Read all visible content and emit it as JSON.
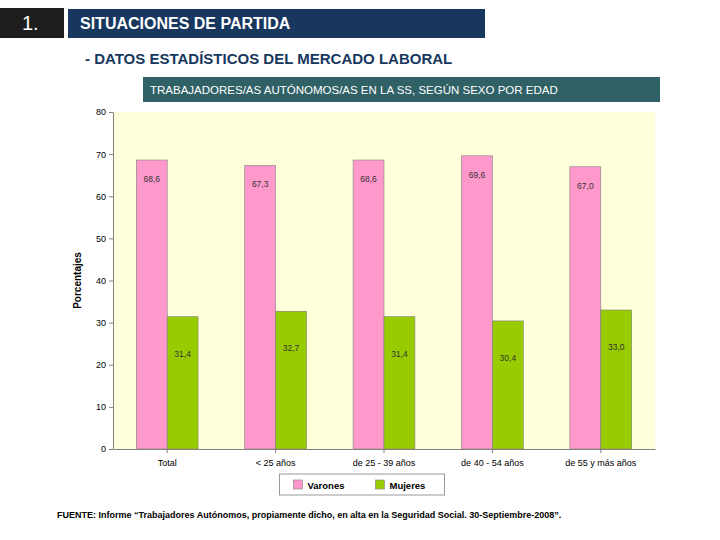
{
  "header": {
    "number": "1.",
    "title": "SITUACIONES DE PARTIDA",
    "subtitle": "- DATOS ESTADÍSTICOS DEL MERCADO LABORAL"
  },
  "chart_data": {
    "type": "bar",
    "title": "TRABAJADORES/AS AUTÓNOMOS/AS EN LA SS, SEGÚN SEXO POR EDAD",
    "y_label": "Porcentajes",
    "categories": [
      "Total",
      "< 25 años",
      "de 25 - 39 años",
      "de 40 - 54 años",
      "de 55 y más años"
    ],
    "series": [
      {
        "name": "Varones",
        "color": "#ff99cc",
        "values": [
          68.6,
          67.3,
          68.6,
          69.6,
          67.0
        ],
        "value_labels": [
          "68,6",
          "67,3",
          "68,6",
          "69,6",
          "67,0"
        ]
      },
      {
        "name": "Mujeres",
        "color": "#99cc00",
        "values": [
          31.4,
          32.7,
          31.4,
          30.4,
          33.0
        ],
        "value_labels": [
          "31,4",
          "32,7",
          "31,4",
          "30,4",
          "33,0"
        ]
      }
    ],
    "ylim": [
      0,
      80
    ],
    "yticks": [
      0,
      10,
      20,
      30,
      40,
      50,
      60,
      70,
      80
    ],
    "grid": false,
    "data_labels": true,
    "legend": "bottom",
    "source": "FUENTE: Informe “Trabajadores Autónomos, propiamente dicho, en alta en la Seguridad Social. 30-Septiembre-2008”."
  }
}
